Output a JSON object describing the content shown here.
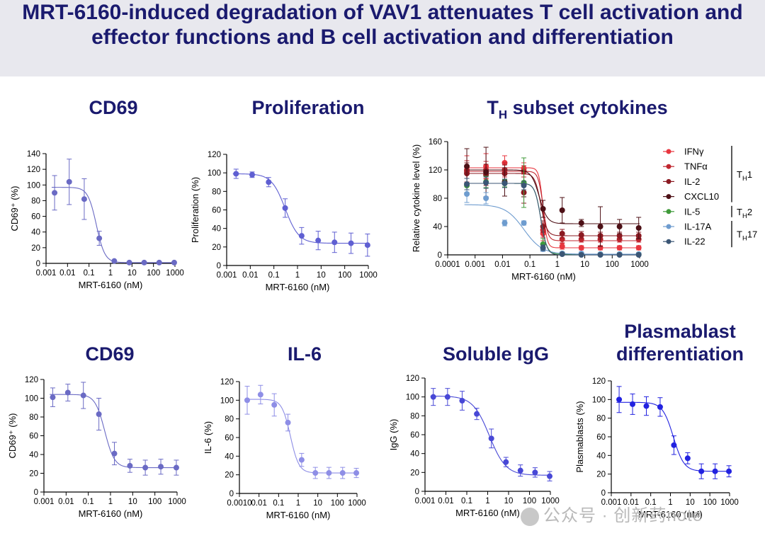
{
  "title": "MRT-6160-induced degradation of VAV1 attenuates T cell activation and effector functions and B cell activation and differentiation",
  "watermark": "公众号 · 创新药note",
  "panel_titles": {
    "p1": "CD69",
    "p2": "Proliferation",
    "p3_main": "T",
    "p3_sub": "H",
    "p3_rest": " subset cytokines",
    "p4": "CD69",
    "p5": "IL-6",
    "p6": "Soluble IgG",
    "p7_line1": "Plasmablast",
    "p7_line2": "differentiation"
  },
  "chart_data": [
    {
      "id": "cd69_t",
      "type": "scatter",
      "title": "CD69",
      "xlabel": "MRT-6160 (nM)",
      "ylabel": "CD69⁺ (%)",
      "xlog": true,
      "xlim": [
        0.001,
        1000
      ],
      "ylim": [
        0,
        140
      ],
      "xticks": [
        0.001,
        0.01,
        0.1,
        1,
        10,
        100,
        1000
      ],
      "xtick_labels": [
        "0.001",
        "0.01",
        "0.1",
        "1",
        "10",
        "100",
        "1000"
      ],
      "yticks": [
        0,
        20,
        40,
        60,
        80,
        100,
        120,
        140
      ],
      "color": "#6a6ac4",
      "fit": {
        "top": 97,
        "bottom": 1,
        "ic50": 0.22,
        "hill": 2.2
      },
      "series": [
        {
          "name": "CD69",
          "color": "#6a6ac4",
          "x": [
            0.0025,
            0.012,
            0.06,
            0.3,
            1.5,
            7.5,
            37,
            185,
            925
          ],
          "y": [
            90,
            104,
            82,
            32,
            3,
            1,
            1,
            1,
            1
          ],
          "err": [
            22,
            29,
            26,
            9,
            1,
            1,
            1,
            1,
            1
          ]
        }
      ]
    },
    {
      "id": "prolif",
      "type": "scatter",
      "title": "Proliferation",
      "xlabel": "MRT-6160 (nM)",
      "ylabel": "Proliferation (%)",
      "xlog": true,
      "xlim": [
        0.001,
        1000
      ],
      "ylim": [
        0,
        120
      ],
      "xticks": [
        0.001,
        0.01,
        0.1,
        1,
        10,
        100,
        1000
      ],
      "xtick_labels": [
        "0.001",
        "0.01",
        "0.1",
        "1",
        "10",
        "100",
        "1000"
      ],
      "yticks": [
        0,
        20,
        40,
        60,
        80,
        100,
        120
      ],
      "color": "#5f5fd2",
      "fit": {
        "top": 99,
        "bottom": 24,
        "ic50": 0.3,
        "hill": 1.5
      },
      "series": [
        {
          "name": "Proliferation",
          "color": "#5f5fd2",
          "x": [
            0.0025,
            0.012,
            0.06,
            0.3,
            1.5,
            7.5,
            37,
            185,
            925
          ],
          "y": [
            99,
            98,
            90,
            62,
            32,
            27,
            25,
            24,
            22
          ],
          "err": [
            5,
            3,
            5,
            10,
            9,
            10,
            11,
            11,
            12
          ]
        }
      ]
    },
    {
      "id": "th_cytokines",
      "type": "scatter",
      "title": "TH subset cytokines",
      "xlabel": "MRT-6160 (nM)",
      "ylabel": "Relative cytokine level (%)",
      "xlog": true,
      "xlim": [
        0.0001,
        1000
      ],
      "ylim": [
        0,
        160
      ],
      "xticks": [
        0.0001,
        0.001,
        0.01,
        0.1,
        1,
        10,
        100,
        1000
      ],
      "xtick_labels": [
        "0.0001",
        "0.001",
        "0.01",
        "0.1",
        "1",
        "10",
        "100",
        "1000"
      ],
      "yticks": [
        0,
        40,
        80,
        120,
        160
      ],
      "legend_position": "right",
      "groups": [
        {
          "label": "T",
          "sub": "H",
          "suffix": "1",
          "members": [
            "IFNγ",
            "TNFα",
            "IL-2",
            "CXCL10"
          ]
        },
        {
          "label": "T",
          "sub": "H",
          "suffix": "2",
          "members": [
            "IL-5"
          ]
        },
        {
          "label": "T",
          "sub": "H",
          "suffix": "17",
          "members": [
            "IL-17A",
            "IL-22"
          ]
        }
      ],
      "series": [
        {
          "name": "IFNγ",
          "color": "#e8363f",
          "fit": {
            "top": 123,
            "bottom": 10,
            "ic50": 0.3,
            "hill": 6
          },
          "x": [
            0.0005,
            0.0025,
            0.012,
            0.06,
            0.3,
            1.5,
            7.5,
            37,
            185,
            925
          ],
          "y": [
            120,
            125,
            130,
            122,
            30,
            12,
            10,
            10,
            10,
            10
          ],
          "err": [
            20,
            18,
            10,
            8,
            10,
            4,
            3,
            3,
            3,
            3
          ]
        },
        {
          "name": "TNFα",
          "color": "#c0262f",
          "fit": {
            "top": 118,
            "bottom": 20,
            "ic50": 0.3,
            "hill": 5
          },
          "x": [
            0.0005,
            0.0025,
            0.012,
            0.06,
            0.3,
            1.5,
            7.5,
            37,
            185,
            925
          ],
          "y": [
            118,
            120,
            120,
            118,
            35,
            22,
            22,
            22,
            22,
            22
          ],
          "err": [
            15,
            12,
            10,
            8,
            10,
            5,
            4,
            4,
            4,
            4
          ]
        },
        {
          "name": "IL-2",
          "color": "#8b1a22",
          "fit": {
            "top": 115,
            "bottom": 27,
            "ic50": 0.25,
            "hill": 4
          },
          "x": [
            0.0005,
            0.0025,
            0.012,
            0.06,
            0.3,
            1.5,
            7.5,
            37,
            185,
            925
          ],
          "y": [
            115,
            113,
            115,
            88,
            40,
            30,
            28,
            27,
            27,
            27
          ],
          "err": [
            15,
            15,
            12,
            15,
            8,
            6,
            5,
            5,
            5,
            5
          ]
        },
        {
          "name": "CXCL10",
          "color": "#4d1016",
          "fit": {
            "top": 120,
            "bottom": 44,
            "ic50": 0.22,
            "hill": 3
          },
          "x": [
            0.0005,
            0.0025,
            0.012,
            0.06,
            0.3,
            1.5,
            7.5,
            37,
            185,
            925
          ],
          "y": [
            125,
            117,
            103,
            100,
            65,
            63,
            45,
            40,
            40,
            38
          ],
          "err": [
            25,
            35,
            20,
            18,
            12,
            18,
            5,
            28,
            10,
            15
          ]
        },
        {
          "name": "IL-5",
          "color": "#3f9a3a",
          "fit": {
            "top": 101,
            "bottom": 1,
            "ic50": 0.25,
            "hill": 4
          },
          "x": [
            0.0005,
            0.0025,
            0.012,
            0.06,
            0.3,
            1.5,
            7.5,
            37,
            185,
            925
          ],
          "y": [
            98,
            103,
            101,
            102,
            15,
            2,
            1,
            1,
            1,
            1
          ],
          "err": [
            10,
            8,
            5,
            35,
            8,
            2,
            2,
            2,
            2,
            2
          ]
        },
        {
          "name": "IL-17A",
          "color": "#6e9ccf",
          "fit": {
            "top": 71,
            "bottom": 1,
            "ic50": 0.06,
            "hill": 1.3
          },
          "x": [
            0.0005,
            0.0025,
            0.012,
            0.06,
            0.3,
            1.5,
            7.5,
            37,
            185,
            925
          ],
          "y": [
            86,
            80,
            45,
            45,
            8,
            2,
            2,
            1,
            1,
            1
          ],
          "err": [
            12,
            8,
            4,
            3,
            3,
            2,
            2,
            2,
            2,
            2
          ]
        },
        {
          "name": "IL-22",
          "color": "#3b5675",
          "fit": {
            "top": 101,
            "bottom": 0,
            "ic50": 0.25,
            "hill": 4
          },
          "x": [
            0.0005,
            0.0025,
            0.012,
            0.06,
            0.3,
            1.5,
            7.5,
            37,
            185,
            925
          ],
          "y": [
            100,
            102,
            101,
            98,
            10,
            1,
            0,
            0,
            0,
            0
          ],
          "err": [
            8,
            8,
            6,
            6,
            4,
            2,
            2,
            2,
            2,
            2
          ]
        }
      ]
    },
    {
      "id": "cd69_b",
      "type": "scatter",
      "title": "CD69",
      "xlabel": "MRT-6160 (nM)",
      "ylabel": "CD69⁺ (%)",
      "xlog": true,
      "xlim": [
        0.001,
        1000
      ],
      "ylim": [
        0,
        120
      ],
      "xticks": [
        0.001,
        0.01,
        0.1,
        1,
        10,
        100,
        1000
      ],
      "xtick_labels": [
        "0.001",
        "0.01",
        "0.1",
        "1",
        "10",
        "100",
        "1000"
      ],
      "yticks": [
        0,
        20,
        40,
        60,
        80,
        100,
        120
      ],
      "color": "#6a6ac4",
      "fit": {
        "top": 104,
        "bottom": 26,
        "ic50": 0.55,
        "hill": 2
      },
      "series": [
        {
          "name": "CD69",
          "color": "#6a6ac4",
          "x": [
            0.0025,
            0.012,
            0.06,
            0.3,
            1.5,
            7.5,
            37,
            185,
            925
          ],
          "y": [
            101,
            106,
            103,
            83,
            41,
            28,
            26,
            27,
            26
          ],
          "err": [
            10,
            9,
            14,
            17,
            12,
            7,
            8,
            8,
            8
          ]
        }
      ]
    },
    {
      "id": "il6",
      "type": "scatter",
      "title": "IL-6",
      "xlabel": "MRT-6160 (nM)",
      "ylabel": "IL-6 (%)",
      "xlog": true,
      "xlim": [
        0.001,
        1000
      ],
      "ylim": [
        0,
        120
      ],
      "xticks": [
        0.001,
        0.01,
        0.1,
        1,
        10,
        100,
        1000
      ],
      "xtick_labels": [
        "0.0010",
        "0.01",
        "0.1",
        "1",
        "10",
        "100",
        "1000"
      ],
      "yticks": [
        0,
        20,
        40,
        60,
        80,
        100,
        120
      ],
      "color": "#8e8ee6",
      "fit": {
        "top": 101,
        "bottom": 22,
        "ic50": 0.4,
        "hill": 2
      },
      "series": [
        {
          "name": "IL-6",
          "color": "#8e8ee6",
          "x": [
            0.0025,
            0.012,
            0.06,
            0.3,
            1.5,
            7.5,
            37,
            185,
            925
          ],
          "y": [
            100,
            106,
            95,
            76,
            36,
            22,
            22,
            22,
            22
          ],
          "err": [
            15,
            10,
            12,
            9,
            7,
            6,
            6,
            6,
            5
          ]
        }
      ]
    },
    {
      "id": "igg",
      "type": "scatter",
      "title": "Soluble IgG",
      "xlabel": "MRT-6160 (nM)",
      "ylabel": "IgG (%)",
      "xlog": true,
      "xlim": [
        0.001,
        1000
      ],
      "ylim": [
        0,
        120
      ],
      "xticks": [
        0.001,
        0.01,
        0.1,
        1,
        10,
        100,
        1000
      ],
      "xtick_labels": [
        "0.001",
        "0.01",
        "0.1",
        "1",
        "10",
        "100",
        "1000"
      ],
      "yticks": [
        0,
        20,
        40,
        60,
        80,
        100,
        120
      ],
      "color": "#4848d6",
      "fit": {
        "top": 101,
        "bottom": 17,
        "ic50": 1.2,
        "hill": 1.1
      },
      "series": [
        {
          "name": "IgG",
          "color": "#4848d6",
          "x": [
            0.0025,
            0.012,
            0.06,
            0.3,
            1.5,
            7.5,
            37,
            185,
            925
          ],
          "y": [
            100,
            100,
            96,
            82,
            56,
            31,
            22,
            20,
            16
          ],
          "err": [
            9,
            9,
            10,
            6,
            10,
            5,
            6,
            5,
            5
          ]
        }
      ]
    },
    {
      "id": "plasmablast",
      "type": "scatter",
      "title": "Plasmablast differentiation",
      "xlabel": "MRT-6160 (nM)",
      "ylabel": "Plasmablasts (%)",
      "xlog": true,
      "xlim": [
        0.001,
        1000
      ],
      "ylim": [
        0,
        120
      ],
      "xticks": [
        0.001,
        0.01,
        0.1,
        1,
        10,
        100,
        1000
      ],
      "xtick_labels": [
        "0.001",
        "0.01",
        "0.1",
        "1",
        "10",
        "100",
        "1000"
      ],
      "yticks": [
        0,
        20,
        40,
        60,
        80,
        100,
        120
      ],
      "color": "#2222e0",
      "fit": {
        "top": 97,
        "bottom": 23,
        "ic50": 1.4,
        "hill": 1.6
      },
      "series": [
        {
          "name": "Plasmablasts",
          "color": "#2222e0",
          "x": [
            0.0025,
            0.012,
            0.06,
            0.3,
            1.5,
            7.5,
            37,
            185,
            925
          ],
          "y": [
            100,
            95,
            93,
            92,
            51,
            37,
            23,
            23,
            23
          ],
          "err": [
            14,
            11,
            10,
            10,
            10,
            6,
            8,
            8,
            6
          ]
        }
      ]
    }
  ]
}
